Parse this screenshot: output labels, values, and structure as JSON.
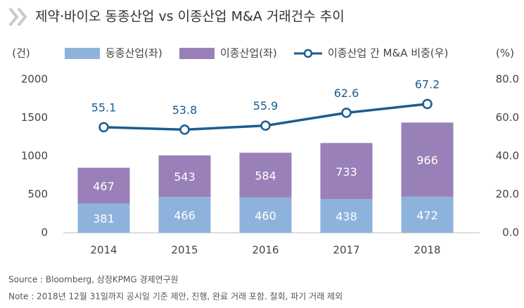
{
  "chart_data": {
    "type": "bar-line",
    "title": "제약·바이오 동종산업 vs 이종산업 M&A 거래건수 추이",
    "y_label": "(건)",
    "y2_label": "(%)",
    "categories": [
      "2014",
      "2015",
      "2016",
      "2017",
      "2018"
    ],
    "series": [
      {
        "name": "동종산업(좌)",
        "color": "#8db3dc",
        "values": [
          381,
          466,
          460,
          438,
          472
        ]
      },
      {
        "name": "이종산업(좌)",
        "color": "#9a80b8",
        "values": [
          467,
          543,
          584,
          733,
          966
        ]
      },
      {
        "name": "이종산업 간 M&A 비중(우)",
        "color": "#1b5d8f",
        "axis": "y2",
        "values": [
          55.1,
          53.8,
          55.9,
          62.6,
          67.2
        ]
      }
    ],
    "ylim": [
      0,
      2000
    ],
    "yticks": [
      0,
      500,
      1000,
      1500,
      2000
    ],
    "y2lim": [
      0,
      80
    ],
    "y2ticks": [
      {
        "value": 0,
        "label": "0.0"
      },
      {
        "value": 20,
        "label": "20.0"
      },
      {
        "value": 40,
        "label": "40.0"
      },
      {
        "value": 60,
        "label": "60.0"
      },
      {
        "value": 80,
        "label": "80.0"
      }
    ],
    "grid": false,
    "source": "Source : Bloomberg, 삼정KPMG 경제연구원",
    "note": "Note : 2018년 12월 31일까지 공시일 기준 제안, 진행, 완료 거래 포함. 철회, 파기 거래 제외"
  }
}
